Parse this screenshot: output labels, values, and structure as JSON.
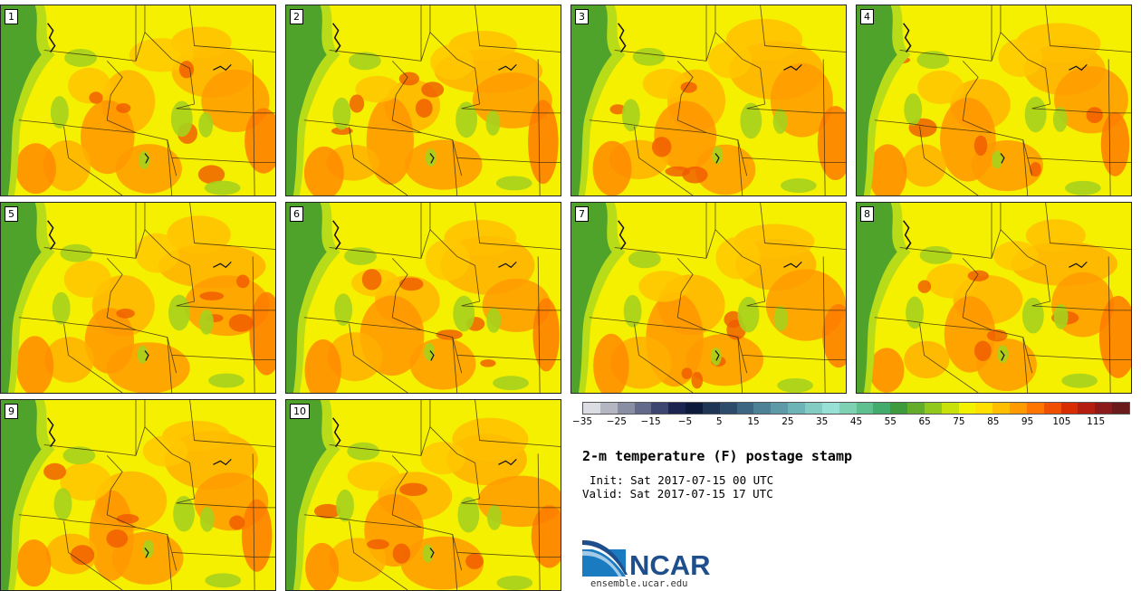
{
  "panels": [
    {
      "label": "1"
    },
    {
      "label": "2"
    },
    {
      "label": "3"
    },
    {
      "label": "4"
    },
    {
      "label": "5"
    },
    {
      "label": "6"
    },
    {
      "label": "7"
    },
    {
      "label": "8"
    },
    {
      "label": "9"
    },
    {
      "label": "10"
    }
  ],
  "colorbar": {
    "colors": [
      "#dcdde3",
      "#b4b6c2",
      "#8a8ea2",
      "#62698a",
      "#3c4670",
      "#1c2550",
      "#0e1a3c",
      "#1e3556",
      "#2d4c6c",
      "#3c6681",
      "#4c8196",
      "#5c9aa7",
      "#6db4b6",
      "#82ccc4",
      "#97e0d6",
      "#7ed2b3",
      "#5fbf8f",
      "#43ab6b",
      "#3d9a3d",
      "#63ad2a",
      "#91c81c",
      "#c8e10b",
      "#f2f200",
      "#ffe000",
      "#ffbe00",
      "#ff9a00",
      "#ff7500",
      "#f04e00",
      "#d82d00",
      "#b41e10",
      "#8c1a1a",
      "#6a1a1a"
    ],
    "ticks": [
      "−35",
      "−25",
      "−15",
      "−5",
      "5",
      "15",
      "25",
      "35",
      "45",
      "55",
      "65",
      "75",
      "85",
      "95",
      "105",
      "115"
    ]
  },
  "title": "2-m temperature (F) postage stamp",
  "init": "Init: Sat 2017-07-15 00 UTC",
  "valid": "Valid: Sat 2017-07-15 17 UTC",
  "logo": {
    "text": "NCAR",
    "color": "#1f4e8c"
  },
  "url": "ensemble.ucar.edu"
}
